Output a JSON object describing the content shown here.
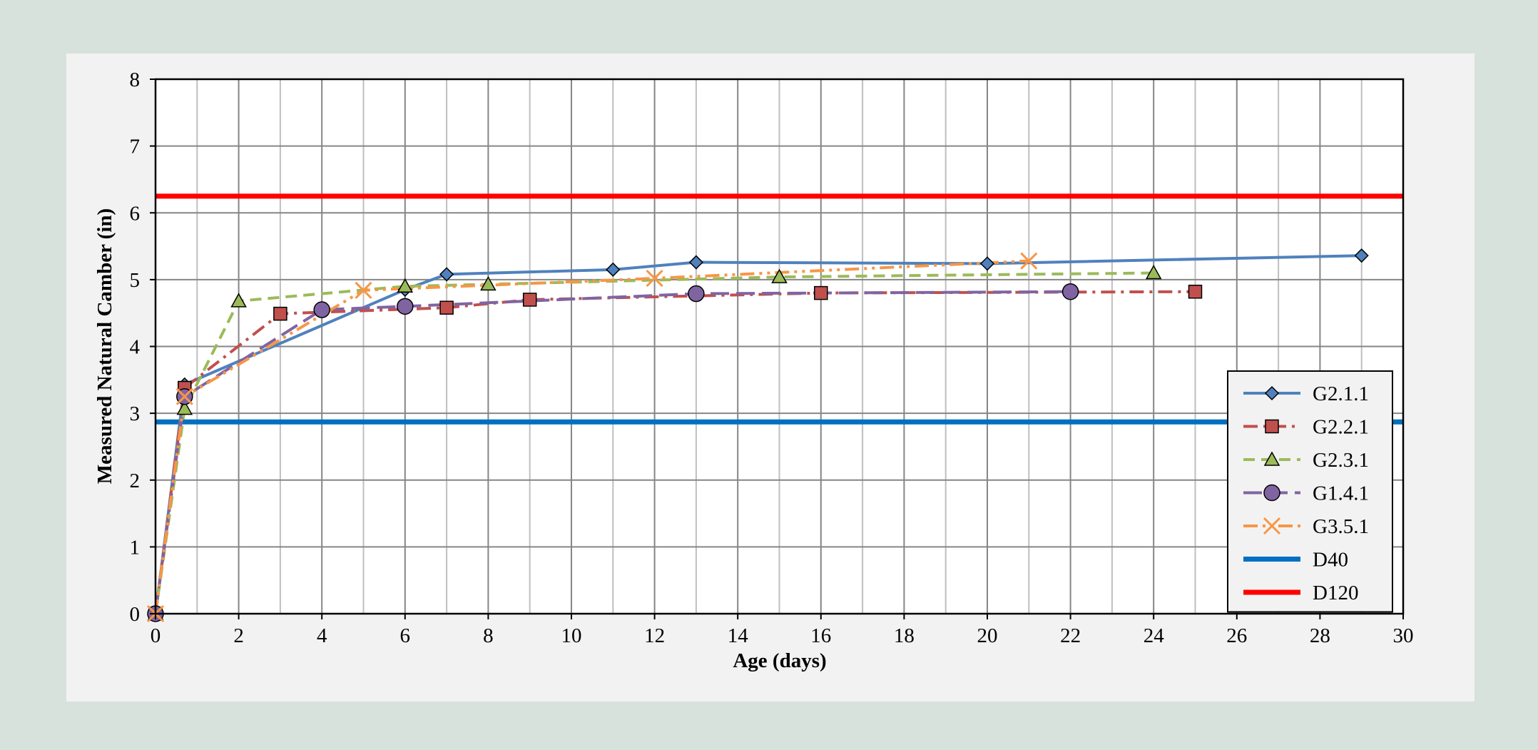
{
  "chart_data": {
    "type": "line",
    "title": "",
    "xlabel": "Age (days)",
    "ylabel": "Measured Natural Camber (in)",
    "xlim": [
      0,
      30
    ],
    "ylim": [
      0,
      8
    ],
    "x_ticks": [
      0,
      2,
      4,
      6,
      8,
      10,
      12,
      14,
      16,
      18,
      20,
      22,
      24,
      26,
      28,
      30
    ],
    "y_ticks": [
      0,
      1,
      2,
      3,
      4,
      5,
      6,
      7,
      8
    ],
    "x_tick_labels": [
      "0",
      "2",
      "4",
      "6",
      "8",
      "10",
      "12",
      "14",
      "16",
      "18",
      "20",
      "22",
      "24",
      "26",
      "28",
      "30"
    ],
    "y_tick_labels": [
      "0",
      "1",
      "2",
      "3",
      "4",
      "5",
      "6",
      "7",
      "8"
    ],
    "grid": true,
    "legend_position": "lower-right",
    "series": [
      {
        "name": "G2.1.1",
        "color": "#4f81bd",
        "dash": "solid",
        "marker": "diamond",
        "points": [
          [
            0,
            0
          ],
          [
            0.7,
            3.43
          ],
          [
            6,
            4.85
          ],
          [
            7,
            5.08
          ],
          [
            11,
            5.15
          ],
          [
            13,
            5.26
          ],
          [
            20,
            5.24
          ],
          [
            29,
            5.36
          ]
        ]
      },
      {
        "name": "G2.2.1",
        "color": "#c0504d",
        "dash": "dashdot",
        "marker": "square",
        "points": [
          [
            0,
            0
          ],
          [
            0.7,
            3.38
          ],
          [
            3,
            4.49
          ],
          [
            7,
            4.58
          ],
          [
            9,
            4.7
          ],
          [
            16,
            4.8
          ],
          [
            25,
            4.82
          ]
        ]
      },
      {
        "name": "G2.3.1",
        "color": "#9bbb59",
        "dash": "dash",
        "marker": "triangle",
        "points": [
          [
            0,
            0
          ],
          [
            0.7,
            3.07
          ],
          [
            2,
            4.68
          ],
          [
            6,
            4.9
          ],
          [
            8,
            4.93
          ],
          [
            15,
            5.04
          ],
          [
            24,
            5.1
          ]
        ]
      },
      {
        "name": "G1.4.1",
        "color": "#8064a2",
        "dash": "longdash",
        "marker": "circle",
        "points": [
          [
            0,
            0
          ],
          [
            0.7,
            3.25
          ],
          [
            4,
            4.55
          ],
          [
            6,
            4.6
          ],
          [
            13,
            4.79
          ],
          [
            22,
            4.82
          ]
        ]
      },
      {
        "name": "G3.5.1",
        "color": "#f79646",
        "dash": "dashdotdot",
        "marker": "x",
        "points": [
          [
            0,
            0
          ],
          [
            0.7,
            3.25
          ],
          [
            5,
            4.84
          ],
          [
            12,
            5.02
          ],
          [
            21,
            5.28
          ]
        ]
      },
      {
        "name": "D40",
        "color": "#0070c0",
        "dash": "solid",
        "marker": "none",
        "points": [
          [
            0,
            2.87
          ],
          [
            30,
            2.87
          ]
        ]
      },
      {
        "name": "D120",
        "color": "#ff0000",
        "dash": "solid",
        "marker": "none",
        "points": [
          [
            0,
            6.25
          ],
          [
            30,
            6.25
          ]
        ]
      }
    ]
  }
}
